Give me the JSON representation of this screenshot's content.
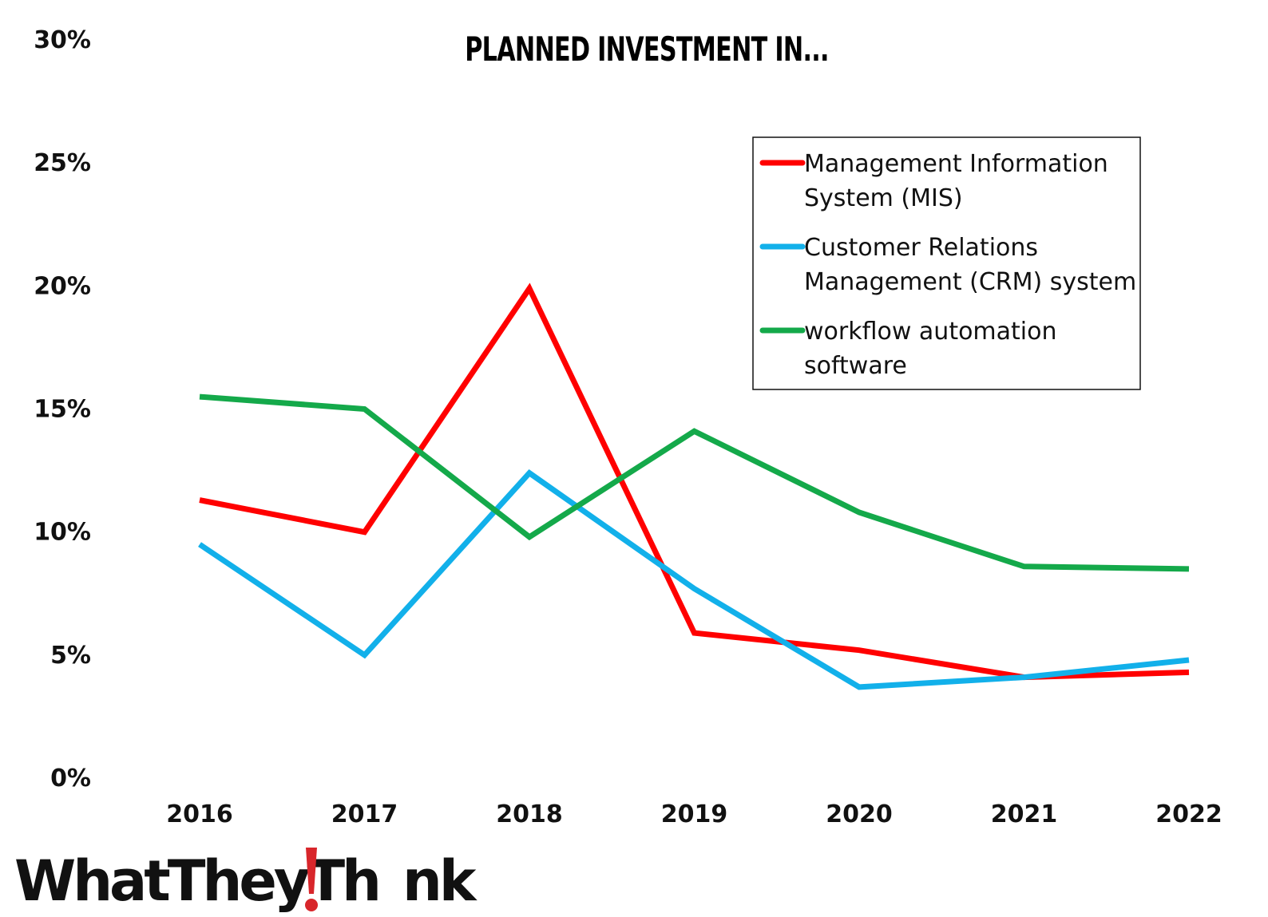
{
  "chart_data": {
    "type": "line",
    "title": "PLANNED INVESTMENT IN...",
    "x": [
      "2016",
      "2017",
      "2018",
      "2019",
      "2020",
      "2021",
      "2022"
    ],
    "ylim": [
      0,
      30
    ],
    "yticks": [
      "0%",
      "5%",
      "10%",
      "15%",
      "20%",
      "25%",
      "30%"
    ],
    "xlabel": "",
    "ylabel": "",
    "grid": false,
    "legend_position": "top-right",
    "series": [
      {
        "name": "Management Information System (MIS)",
        "legend_lines": [
          "Management Information",
          "System (MIS)"
        ],
        "color": "#ff0000",
        "values": [
          11.3,
          10.0,
          19.9,
          5.9,
          5.2,
          4.1,
          4.3
        ]
      },
      {
        "name": "Customer Relations Management (CRM) system",
        "legend_lines": [
          "Customer Relations",
          "Management (CRM) system"
        ],
        "color": "#12b0ea",
        "values": [
          9.5,
          5.0,
          12.4,
          7.7,
          3.7,
          4.1,
          4.8
        ]
      },
      {
        "name": "workflow automation software",
        "legend_lines": [
          "workflow automation",
          "software"
        ],
        "color": "#14a94a",
        "values": [
          15.5,
          15.0,
          9.8,
          14.1,
          10.8,
          8.6,
          8.5
        ]
      }
    ]
  },
  "logo": {
    "text_before": "WhatTheyTh",
    "text_after": "nk",
    "accent_color": "#d8262b"
  }
}
